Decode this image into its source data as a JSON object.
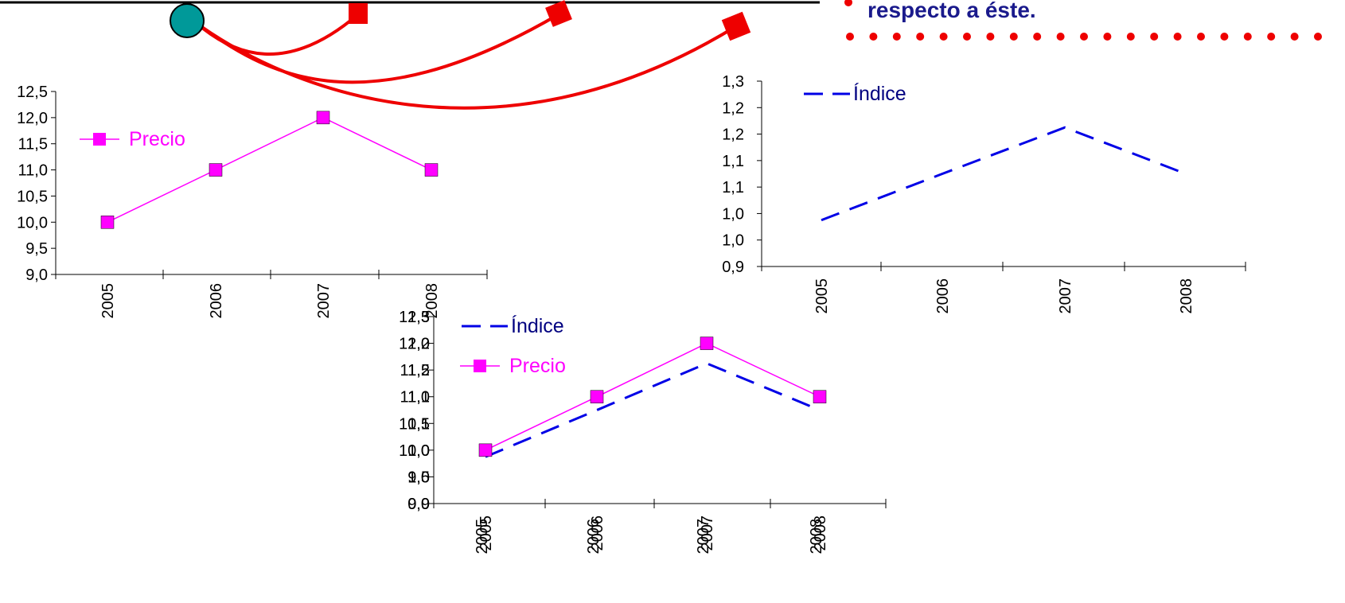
{
  "note_text": "respecto a éste.",
  "colors": {
    "precio": "#ff00ff",
    "indice": "#0000e6",
    "connector": "#ee0000",
    "circle": "#009999",
    "legend_text_indice": "#000080",
    "note_text": "#1a1a8c"
  },
  "chart_data": [
    {
      "id": "precio",
      "type": "line",
      "categories": [
        "2005",
        "2006",
        "2007",
        "2008"
      ],
      "series": [
        {
          "name": "Precio",
          "values": [
            10.0,
            11.0,
            12.0,
            11.0
          ],
          "color": "#ff00ff",
          "marker": "square"
        }
      ],
      "ylim": [
        9.0,
        12.5
      ],
      "yticks": [
        "9,0",
        "9,5",
        "10,0",
        "10,5",
        "11,0",
        "11,5",
        "12,0",
        "12,5"
      ],
      "legend": "left"
    },
    {
      "id": "indice",
      "type": "line",
      "categories": [
        "2005",
        "2006",
        "2007",
        "2008"
      ],
      "series": [
        {
          "name": "Índice",
          "values": [
            1.0,
            1.1,
            1.2,
            1.1
          ],
          "color": "#0000e6",
          "dash": true
        }
      ],
      "ylim": [
        0.9,
        1.3
      ],
      "yticks": [
        "0,9",
        "1,0",
        "1,0",
        "1,1",
        "1,1",
        "1,2",
        "1,2",
        "1,3"
      ],
      "legend": "top-left"
    },
    {
      "id": "combined",
      "type": "line",
      "categories": [
        "2005",
        "2006",
        "2007",
        "2008"
      ],
      "series": [
        {
          "name": "Índice",
          "values": [
            1.0,
            1.1,
            1.2,
            1.1
          ],
          "color": "#0000e6",
          "dash": true
        },
        {
          "name": "Precio",
          "values": [
            10.0,
            11.0,
            12.0,
            11.0
          ],
          "color": "#ff00ff",
          "marker": "square"
        }
      ],
      "ylim": [
        9.0,
        12.5
      ],
      "yticks_overlay": [
        [
          "0,9",
          "1,0",
          "1,0",
          "1,1",
          "1,1",
          "1,2",
          "1,2",
          "1,3"
        ],
        [
          "9,0",
          "9,5",
          "10,0",
          "10,5",
          "11,0",
          "11,5",
          "12,0",
          "12,5"
        ]
      ],
      "legend": "top-left"
    }
  ]
}
